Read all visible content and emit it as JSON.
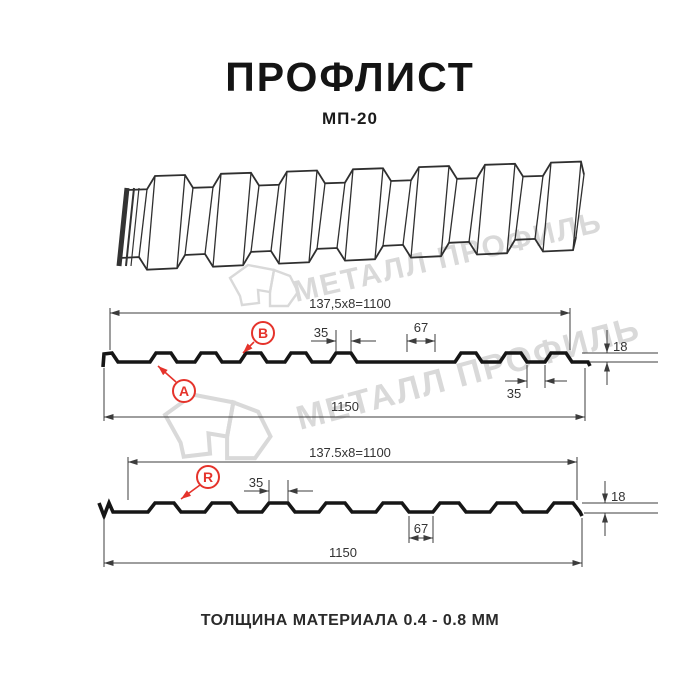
{
  "header": {
    "title": "ПРОФЛИСТ",
    "subtitle": "МП-20"
  },
  "watermark": {
    "brand": "МЕТАЛЛ ПРОФИЛЬ"
  },
  "profile1": {
    "dim_top": "137,5x8=1100",
    "dim_rib_top": "35",
    "dim_gap": "67",
    "dim_height": "18",
    "dim_bottom_flat": "35",
    "dim_total": "1150",
    "label_a": "A",
    "label_b": "B"
  },
  "profile2": {
    "dim_top": "137.5x8=1100",
    "dim_rib_top": "35",
    "dim_gap": "67",
    "dim_height": "18",
    "dim_total": "1150",
    "label_r": "R"
  },
  "footer": {
    "thickness": "ТОЛЩИНА МАТЕРИАЛА 0.4 - 0.8 ММ"
  },
  "colors": {
    "accent_red": "#e5332b",
    "line_dark": "#1a1a1a",
    "line_thin": "#3c3c3c",
    "watermark": "#d9d9d9"
  }
}
